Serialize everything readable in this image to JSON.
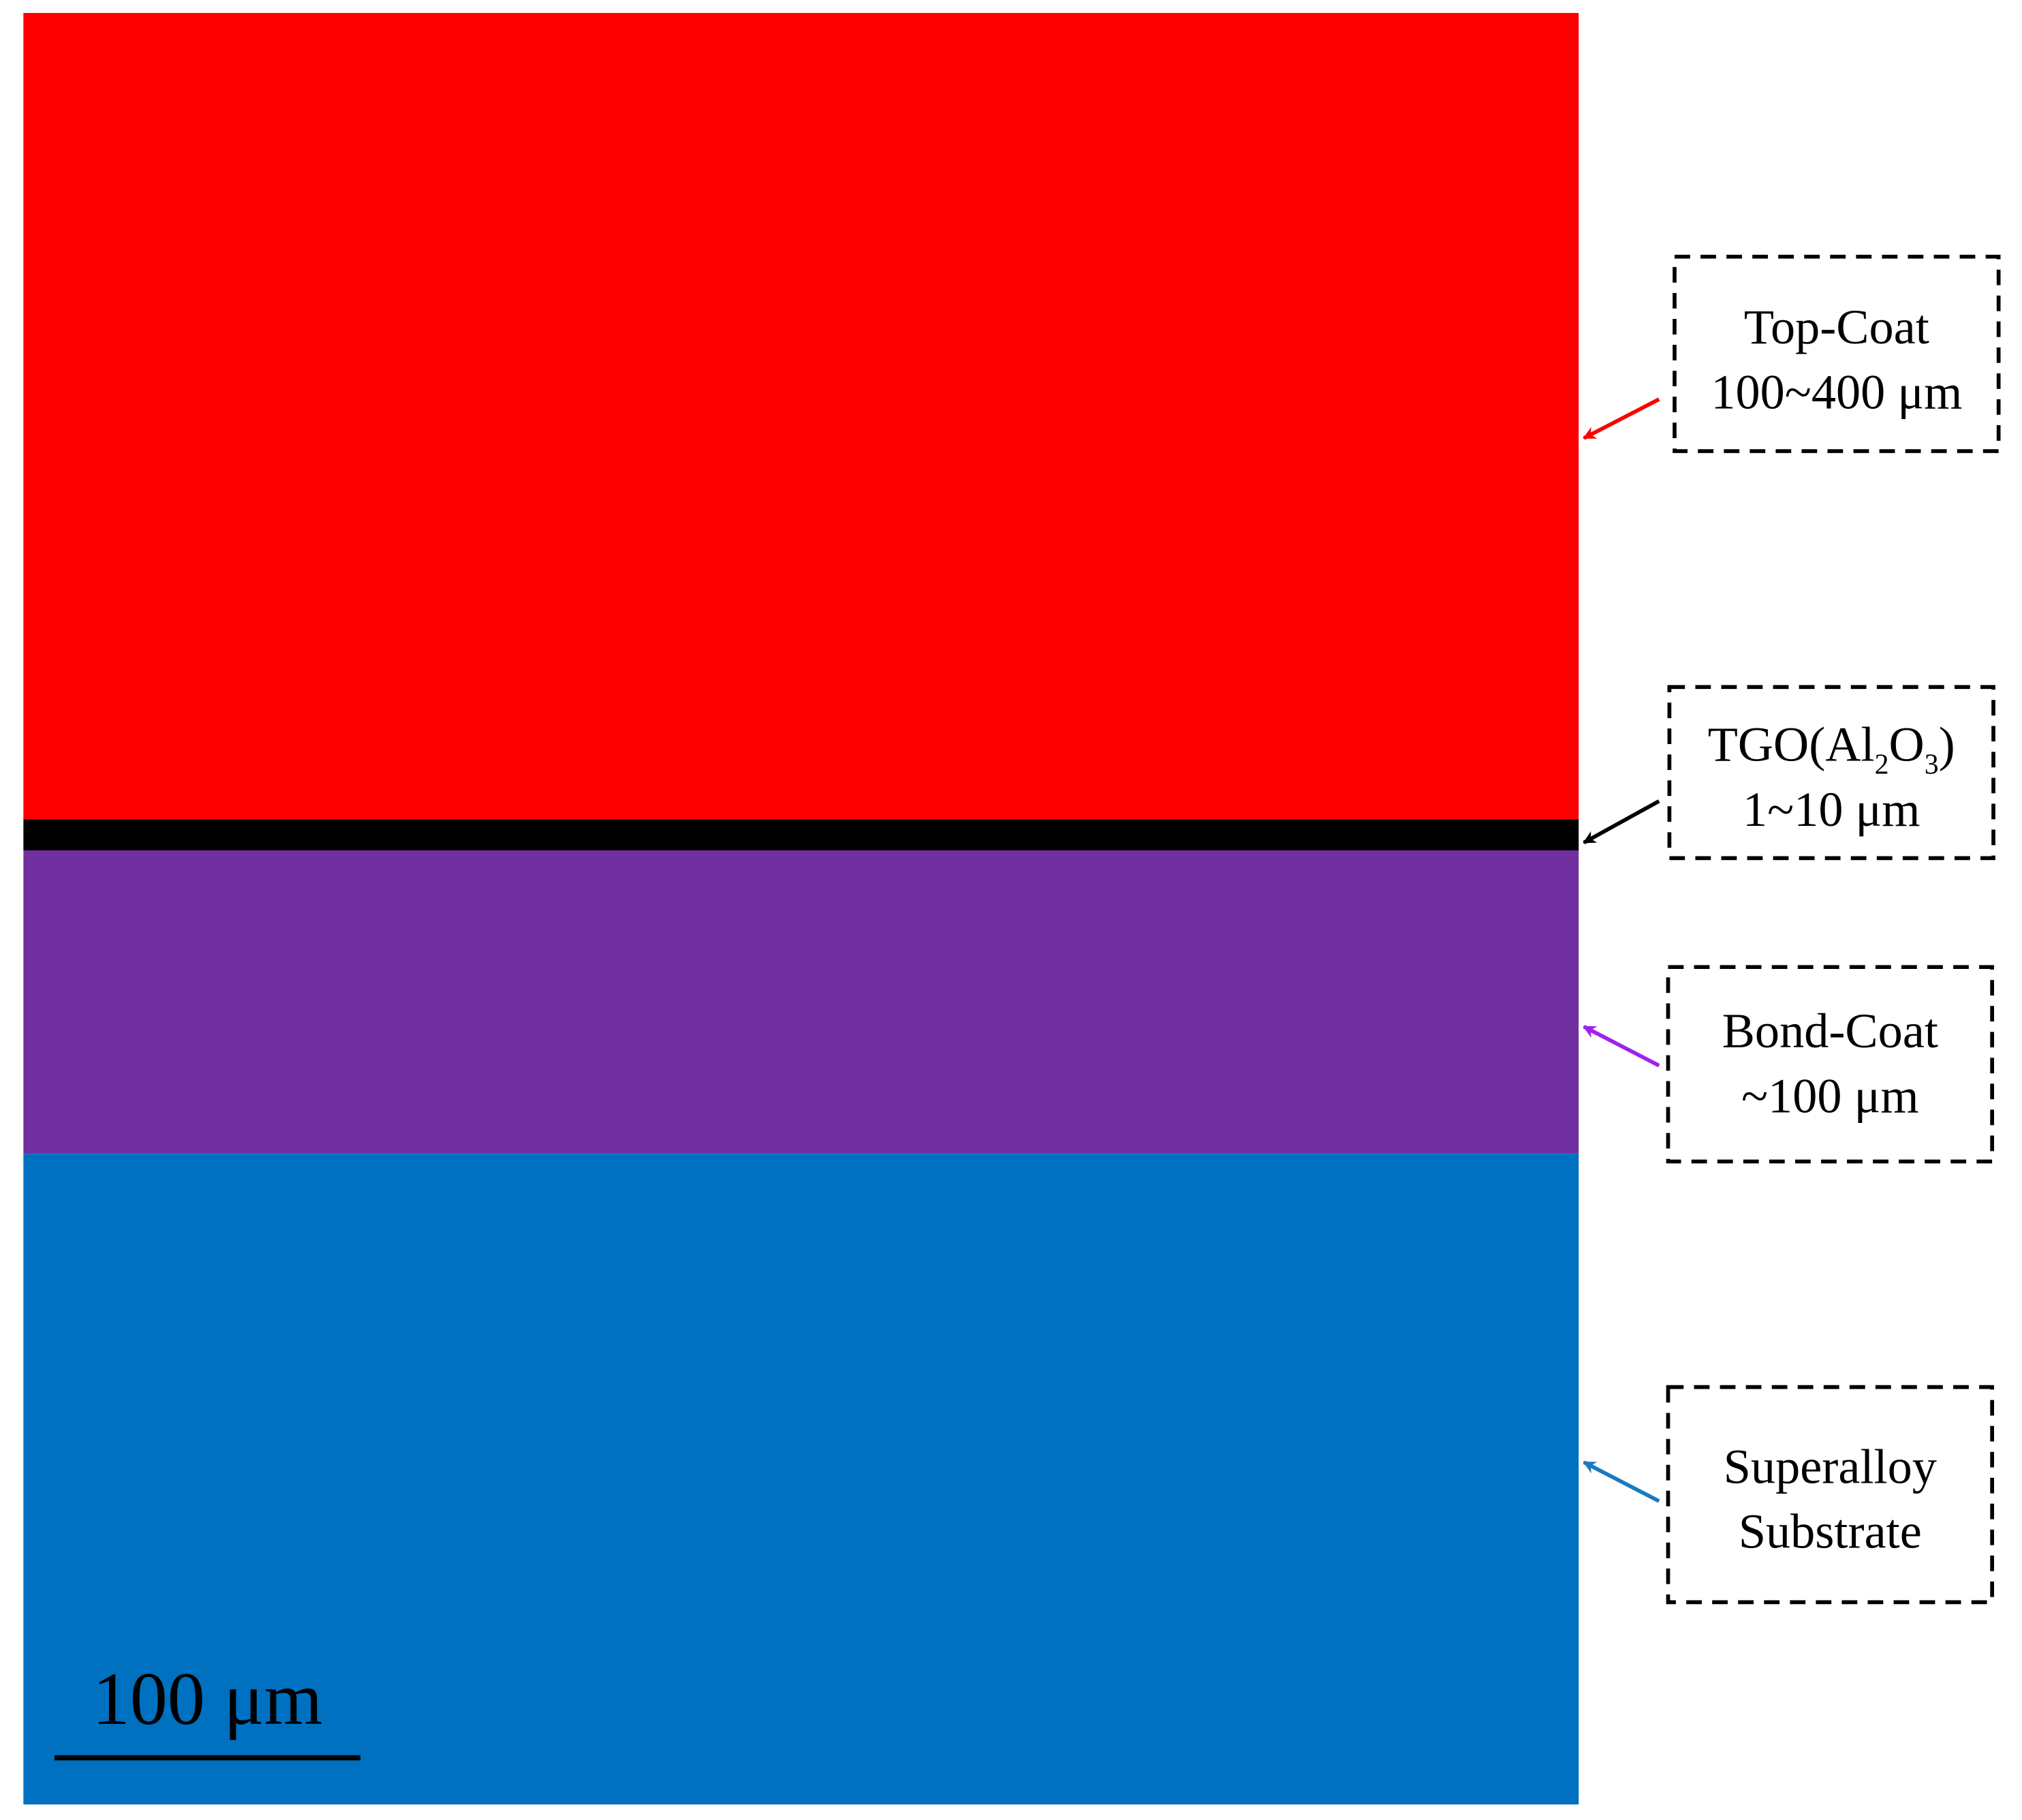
{
  "annotations": [
    {
      "lines": [
        [
          "Top-Coat"
        ],
        [
          "100~400 μm"
        ]
      ]
    },
    {
      "lines": [
        [
          "TGO(Al",
          {
            "sub": "2"
          },
          "O",
          {
            "sub": "3"
          },
          ")"
        ],
        [
          "1~10 μm"
        ]
      ]
    },
    {
      "lines": [
        [
          "Bond-Coat"
        ],
        [
          "~100 μm"
        ]
      ]
    },
    {
      "lines": [
        [
          "Superalloy"
        ],
        [
          "Substrate"
        ]
      ]
    }
  ],
  "scale_bar": "100 μm"
}
